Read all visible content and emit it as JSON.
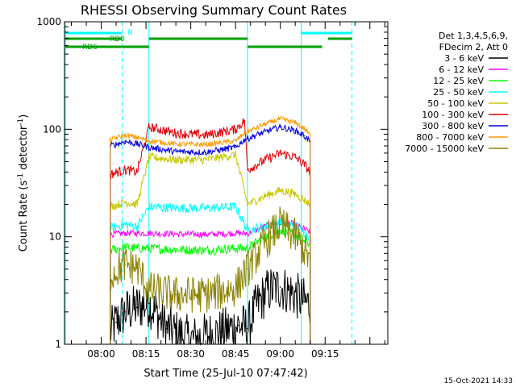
{
  "chart_data": {
    "type": "line",
    "title": "RHESSI Observing Summary Count Rates",
    "xlabel": "Start Time (25-Jul-10 07:47:42)",
    "ylabel_main": "Count Rate (s",
    "ylabel_sup1": "-1",
    "ylabel_mid": " detector",
    "ylabel_sup2": "-1",
    "ylabel_end": ")",
    "y_scale": "log",
    "ylim": [
      1,
      1000
    ],
    "xlim": [
      "07:47:42",
      "09:36:00"
    ],
    "x_ticks": [
      "08:00",
      "08:15",
      "08:30",
      "08:45",
      "09:00",
      "09:15"
    ],
    "y_ticks": [
      "1",
      "10",
      "100",
      "1000"
    ],
    "footer": "15-Oct-2021 14:33",
    "legend_header": [
      "Det 1,3,4,5,6,9,",
      "FDecim 2, Att 0"
    ],
    "flags": [
      {
        "label": "N",
        "color": "#00ffff",
        "segments": [
          [
            "07:48",
            "08:07"
          ],
          [
            "09:07",
            "09:24"
          ]
        ]
      },
      {
        "label": "RD0",
        "color": "#00a000",
        "segments": [
          [
            "07:48",
            "08:07"
          ],
          [
            "08:16",
            "08:49"
          ],
          [
            "09:16",
            "09:24"
          ]
        ]
      },
      {
        "label": "RD6",
        "color": "#00a000",
        "segments": [
          [
            "07:48",
            "08:16"
          ],
          [
            "08:49",
            "09:14"
          ]
        ]
      }
    ],
    "series": [
      {
        "name": "3 - 6 keV",
        "color": "#000000",
        "x": [
          "08:03",
          "08:05",
          "08:08",
          "08:12",
          "08:16",
          "08:22",
          "08:30",
          "08:40",
          "08:46",
          "08:49",
          "08:52",
          "08:56",
          "09:00",
          "09:04",
          "09:08",
          "09:10"
        ],
        "y": [
          1.3,
          1.6,
          2.0,
          2.2,
          2.4,
          1.4,
          1.1,
          1.3,
          1.5,
          1.4,
          2.3,
          3.2,
          3.4,
          3.0,
          2.5,
          2.3
        ]
      },
      {
        "name": "6 - 12 keV",
        "color": "#ff00ff",
        "x": [
          "08:03",
          "08:08",
          "08:12",
          "08:16",
          "08:25",
          "08:35",
          "08:45",
          "08:49",
          "08:55",
          "09:00",
          "09:05",
          "09:08",
          "09:10"
        ],
        "y": [
          10.5,
          10.8,
          10.8,
          10.8,
          10.6,
          10.5,
          10.8,
          10.7,
          12.5,
          14.0,
          13.0,
          11.8,
          11.0
        ]
      },
      {
        "name": "12 - 25 keV",
        "color": "#00ff00",
        "x": [
          "08:03",
          "08:08",
          "08:12",
          "08:16",
          "08:25",
          "08:35",
          "08:45",
          "08:49",
          "08:55",
          "09:00",
          "09:05",
          "09:08",
          "09:10"
        ],
        "y": [
          7.5,
          8.0,
          7.8,
          7.8,
          7.6,
          7.5,
          7.8,
          7.8,
          10.0,
          11.5,
          10.5,
          9.2,
          8.5
        ]
      },
      {
        "name": "25 - 50 keV",
        "color": "#00ffff",
        "x": [
          "08:03",
          "08:08",
          "08:12",
          "08:16",
          "08:25",
          "08:35",
          "08:45",
          "08:49",
          "08:55",
          "09:00",
          "09:05",
          "09:08",
          "09:10"
        ],
        "y": [
          12,
          13,
          12.5,
          19,
          18.5,
          18.5,
          19,
          11.5,
          12.5,
          13.5,
          12.5,
          11,
          10
        ]
      },
      {
        "name": "50 - 100 keV",
        "color": "#c8c800",
        "x": [
          "08:03",
          "08:08",
          "08:12",
          "08:16",
          "08:25",
          "08:35",
          "08:45",
          "08:49",
          "08:55",
          "09:00",
          "09:05",
          "09:08",
          "09:10"
        ],
        "y": [
          19,
          21,
          20,
          55,
          52,
          52,
          58,
          20,
          24,
          27,
          25,
          22,
          20
        ]
      },
      {
        "name": "100 - 300 keV",
        "color": "#e00000",
        "x": [
          "08:03",
          "08:08",
          "08:12",
          "08:16",
          "08:25",
          "08:35",
          "08:45",
          "08:48",
          "08:49",
          "08:55",
          "09:00",
          "09:05",
          "09:08",
          "09:10"
        ],
        "y": [
          38,
          42,
          40,
          105,
          92,
          88,
          100,
          120,
          42,
          52,
          60,
          55,
          47,
          40
        ]
      },
      {
        "name": "300 - 800 keV",
        "color": "#0000e0",
        "x": [
          "08:03",
          "08:08",
          "08:12",
          "08:16",
          "08:25",
          "08:35",
          "08:45",
          "08:48",
          "08:49",
          "08:55",
          "09:00",
          "09:05",
          "09:08",
          "09:10"
        ],
        "y": [
          70,
          77,
          73,
          68,
          62,
          61,
          68,
          80,
          82,
          95,
          105,
          97,
          87,
          77
        ]
      },
      {
        "name": "800 - 7000 keV",
        "color": "#ff9900",
        "x": [
          "08:03",
          "08:08",
          "08:12",
          "08:16",
          "08:25",
          "08:35",
          "08:45",
          "08:48",
          "08:49",
          "08:55",
          "09:00",
          "09:05",
          "09:08",
          "09:10"
        ],
        "y": [
          80,
          88,
          84,
          78,
          73,
          72,
          78,
          92,
          95,
          112,
          125,
          115,
          102,
          88
        ]
      },
      {
        "name": "7000 - 15000 keV",
        "color": "#8c8200",
        "x": [
          "08:03",
          "08:08",
          "08:12",
          "08:16",
          "08:25",
          "08:35",
          "08:45",
          "08:49",
          "08:55",
          "09:00",
          "09:05",
          "09:08",
          "09:10"
        ],
        "y": [
          4.5,
          5.5,
          5.2,
          3.2,
          2.9,
          2.9,
          3.3,
          5.0,
          9.0,
          13.0,
          10.0,
          7.5,
          6.0
        ]
      }
    ],
    "vlines": [
      {
        "time": "07:48",
        "color": "#00ffff",
        "style": "solid"
      },
      {
        "time": "08:07",
        "color": "#00ffff",
        "style": "dashed"
      },
      {
        "time": "08:16",
        "color": "#00ffff",
        "style": "solid"
      },
      {
        "time": "08:49",
        "color": "#00ffff",
        "style": "solid"
      },
      {
        "time": "09:07",
        "color": "#00ffff",
        "style": "solid"
      },
      {
        "time": "09:24",
        "color": "#00ffff",
        "style": "dashed"
      }
    ]
  }
}
